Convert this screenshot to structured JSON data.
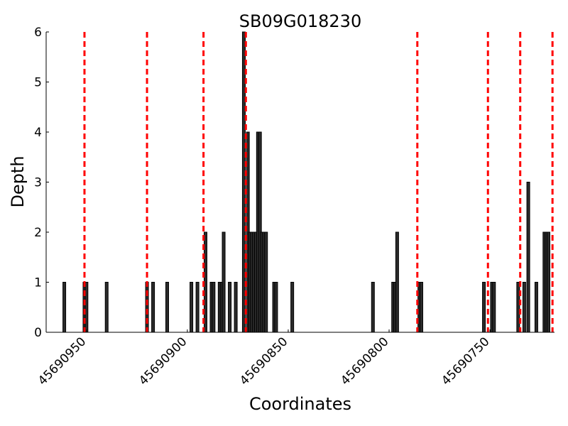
{
  "chart_data": {
    "type": "bar",
    "title": "SB09G018230",
    "xlabel": "Coordinates",
    "ylabel": "Depth",
    "x_axis_reversed": true,
    "xlim": [
      45690970,
      45690718
    ],
    "ylim": [
      0,
      6
    ],
    "x_ticks": [
      45690950,
      45690900,
      45690850,
      45690800,
      45690750
    ],
    "x_tick_labels": [
      "45690950",
      "45690900",
      "45690850",
      "45690800",
      "45690750"
    ],
    "y_ticks": [
      0,
      1,
      2,
      3,
      4,
      5,
      6
    ],
    "y_tick_labels": [
      "0",
      "1",
      "2",
      "3",
      "4",
      "5",
      "6"
    ],
    "bar_color": "#2b2b2b",
    "marker_color": "#ff0000",
    "series": [
      {
        "x": [
          45690961,
          45690951,
          45690950,
          45690940,
          45690920,
          45690917,
          45690910,
          45690898,
          45690895,
          45690891,
          45690888,
          45690887,
          45690884,
          45690883,
          45690882,
          45690879,
          45690876,
          45690872,
          45690870,
          45690869,
          45690868,
          45690867,
          45690866,
          45690865,
          45690864,
          45690863,
          45690862,
          45690861,
          45690857,
          45690856,
          45690848,
          45690808,
          45690798,
          45690797,
          45690796,
          45690785,
          45690784,
          45690753,
          45690749,
          45690748,
          45690736,
          45690733,
          45690731,
          45690727,
          45690723,
          45690722,
          45690721
        ],
        "values": [
          1,
          1,
          1,
          1,
          1,
          1,
          1,
          1,
          1,
          2,
          1,
          1,
          1,
          1,
          2,
          1,
          1,
          6,
          4,
          2,
          2,
          2,
          2,
          4,
          4,
          2,
          2,
          2,
          1,
          1,
          1,
          1,
          1,
          1,
          2,
          1,
          1,
          1,
          1,
          1,
          1,
          1,
          3,
          1,
          2,
          2,
          2
        ]
      }
    ],
    "markers": [
      45690951,
      45690920,
      45690892,
      45690871,
      45690786,
      45690751,
      45690735,
      45690719
    ]
  }
}
